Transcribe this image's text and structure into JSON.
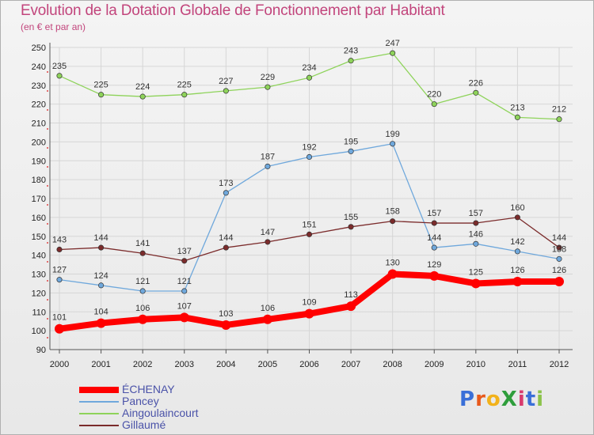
{
  "title": "Evolution de la Dotation Globale de Fonctionnement par Habitant",
  "subtitle": "(en € et par an)",
  "logo": {
    "text": "ProXiti",
    "letters": [
      "P",
      "r",
      "o",
      "X",
      "i",
      "t",
      "i"
    ],
    "colors": [
      "#3a6fd8",
      "#e85a1c",
      "#f2b21b",
      "#2f9e3c",
      "#d83a6e",
      "#3a6fd8",
      "#8bc34a"
    ]
  },
  "chart_data": {
    "type": "line",
    "title": "Evolution de la Dotation Globale de Fonctionnement par Habitant",
    "subtitle": "(en € et par an)",
    "xlabel": "",
    "ylabel": "",
    "x": [
      "2000",
      "2001",
      "2002",
      "2003",
      "2004",
      "2005",
      "2006",
      "2007",
      "2008",
      "2009",
      "2010",
      "2011",
      "2012"
    ],
    "ylim": [
      90,
      250
    ],
    "yticks": [
      90,
      100,
      110,
      120,
      130,
      140,
      150,
      160,
      170,
      180,
      190,
      200,
      210,
      220,
      230,
      240,
      250
    ],
    "grid": true,
    "legend_position": "bottom-left",
    "series": [
      {
        "name": "ÉCHENAY",
        "color": "#ff0000",
        "values": [
          101,
          104,
          106,
          107,
          103,
          106,
          109,
          113,
          130,
          129,
          125,
          126,
          126
        ]
      },
      {
        "name": "Pancey",
        "color": "#6fa8dc",
        "values": [
          127,
          124,
          121,
          121,
          173,
          187,
          192,
          195,
          199,
          144,
          146,
          142,
          138
        ]
      },
      {
        "name": "Aingoulaincourt",
        "color": "#8ed35a",
        "values": [
          235,
          225,
          224,
          225,
          227,
          229,
          234,
          243,
          247,
          220,
          226,
          213,
          212
        ]
      },
      {
        "name": "Gillaumé",
        "color": "#7b2b2b",
        "values": [
          143,
          144,
          141,
          137,
          144,
          147,
          151,
          155,
          158,
          157,
          157,
          160,
          144
        ]
      }
    ]
  }
}
